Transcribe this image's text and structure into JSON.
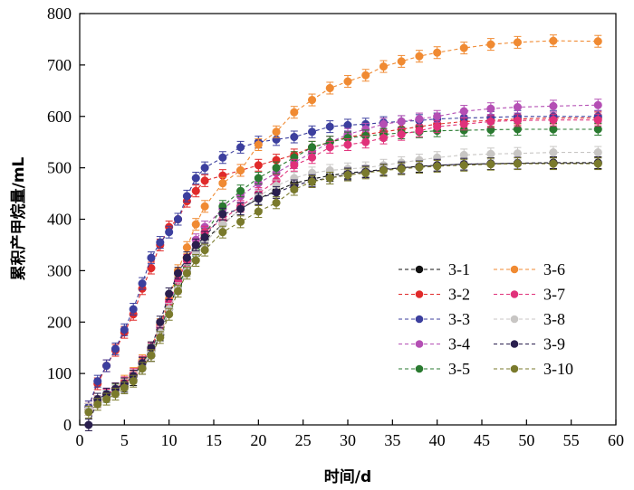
{
  "chart_data": {
    "type": "line",
    "title": "",
    "xlabel": "时间/d",
    "ylabel": "累积产甲烷量/mL",
    "xlim": [
      0,
      60
    ],
    "ylim": [
      0,
      800
    ],
    "xticks": [
      0,
      5,
      10,
      15,
      20,
      25,
      30,
      35,
      40,
      45,
      50,
      55,
      60
    ],
    "yticks": [
      0,
      100,
      200,
      300,
      400,
      500,
      600,
      700,
      800
    ],
    "grid": false,
    "legend_position": "bottom-right",
    "markers": "circle with error bars",
    "series": [
      {
        "name": "3-1",
        "color": "#111111",
        "x": [
          1,
          2,
          3,
          4,
          5,
          6,
          7,
          8,
          9,
          10,
          11,
          12,
          13,
          14,
          16,
          18,
          20,
          22,
          24,
          26,
          28,
          30,
          32,
          34,
          36,
          38,
          40,
          43,
          46,
          49,
          53,
          58
        ],
        "y": [
          30,
          45,
          55,
          65,
          75,
          88,
          110,
          135,
          175,
          225,
          275,
          300,
          335,
          360,
          390,
          420,
          440,
          455,
          470,
          478,
          485,
          490,
          493,
          497,
          500,
          503,
          505,
          507,
          508,
          509,
          510,
          510
        ]
      },
      {
        "name": "3-2",
        "color": "#e02a2a",
        "x": [
          1,
          2,
          3,
          4,
          5,
          6,
          7,
          8,
          9,
          10,
          11,
          12,
          13,
          14,
          16,
          18,
          20,
          22,
          24,
          26,
          28,
          30,
          32,
          34,
          36,
          38,
          40,
          43,
          46,
          49,
          53,
          58
        ],
        "y": [
          35,
          80,
          115,
          145,
          180,
          215,
          265,
          305,
          350,
          385,
          400,
          435,
          455,
          475,
          485,
          495,
          505,
          515,
          525,
          540,
          550,
          560,
          565,
          570,
          575,
          580,
          585,
          590,
          592,
          595,
          597,
          597
        ]
      },
      {
        "name": "3-3",
        "color": "#3c3f9e",
        "x": [
          1,
          2,
          3,
          4,
          5,
          6,
          7,
          8,
          9,
          10,
          11,
          12,
          13,
          14,
          16,
          18,
          20,
          22,
          24,
          26,
          28,
          30,
          32,
          34,
          36,
          38,
          40,
          43,
          46,
          49,
          53,
          58
        ],
        "y": [
          35,
          85,
          115,
          148,
          185,
          225,
          275,
          325,
          355,
          375,
          400,
          445,
          480,
          500,
          520,
          540,
          550,
          555,
          560,
          570,
          580,
          583,
          585,
          588,
          590,
          592,
          595,
          597,
          598,
          600,
          600,
          600
        ]
      },
      {
        "name": "3-4",
        "color": "#b44fb4",
        "x": [
          1,
          2,
          3,
          4,
          5,
          6,
          7,
          8,
          9,
          10,
          11,
          12,
          13,
          14,
          16,
          18,
          20,
          22,
          24,
          26,
          28,
          30,
          32,
          34,
          36,
          38,
          40,
          43,
          46,
          49,
          53,
          58
        ],
        "y": [
          30,
          45,
          60,
          70,
          80,
          95,
          120,
          145,
          185,
          235,
          280,
          320,
          360,
          385,
          420,
          445,
          470,
          490,
          510,
          530,
          550,
          565,
          575,
          585,
          590,
          595,
          600,
          610,
          615,
          618,
          620,
          622
        ]
      },
      {
        "name": "3-5",
        "color": "#2a7a30",
        "x": [
          1,
          2,
          3,
          4,
          5,
          6,
          7,
          8,
          9,
          10,
          11,
          12,
          13,
          14,
          16,
          18,
          20,
          22,
          24,
          26,
          28,
          30,
          32,
          34,
          36,
          38,
          40,
          43,
          46,
          49,
          53,
          58
        ],
        "y": [
          30,
          45,
          55,
          68,
          80,
          95,
          120,
          145,
          185,
          230,
          270,
          305,
          340,
          370,
          425,
          455,
          480,
          500,
          520,
          540,
          550,
          558,
          562,
          565,
          568,
          570,
          572,
          573,
          574,
          575,
          575,
          575
        ]
      },
      {
        "name": "3-6",
        "color": "#f08a32",
        "x": [
          1,
          2,
          3,
          4,
          5,
          6,
          7,
          8,
          9,
          10,
          11,
          12,
          13,
          14,
          16,
          18,
          20,
          22,
          24,
          26,
          28,
          30,
          32,
          34,
          36,
          38,
          40,
          43,
          46,
          49,
          53,
          58
        ],
        "y": [
          30,
          45,
          58,
          70,
          85,
          100,
          125,
          150,
          195,
          245,
          300,
          345,
          390,
          425,
          470,
          495,
          545,
          570,
          608,
          632,
          655,
          668,
          680,
          697,
          707,
          717,
          724,
          733,
          740,
          744,
          747,
          746
        ]
      },
      {
        "name": "3-7",
        "color": "#e0317a",
        "x": [
          1,
          2,
          3,
          4,
          5,
          6,
          7,
          8,
          9,
          10,
          11,
          12,
          13,
          14,
          16,
          18,
          20,
          22,
          24,
          26,
          28,
          30,
          32,
          34,
          36,
          38,
          40,
          43,
          46,
          49,
          53,
          58
        ],
        "y": [
          30,
          45,
          58,
          70,
          82,
          98,
          122,
          148,
          190,
          240,
          280,
          320,
          350,
          375,
          400,
          425,
          450,
          475,
          505,
          520,
          540,
          545,
          550,
          558,
          565,
          572,
          580,
          585,
          590,
          592,
          593,
          593
        ]
      },
      {
        "name": "3-8",
        "color": "#c8c6c4",
        "x": [
          1,
          2,
          3,
          4,
          5,
          6,
          7,
          8,
          9,
          10,
          11,
          12,
          13,
          14,
          16,
          18,
          20,
          22,
          24,
          26,
          28,
          30,
          32,
          34,
          36,
          38,
          40,
          43,
          46,
          49,
          53,
          58
        ],
        "y": [
          30,
          45,
          55,
          65,
          78,
          92,
          115,
          140,
          180,
          225,
          265,
          300,
          335,
          355,
          390,
          420,
          445,
          465,
          480,
          490,
          495,
          498,
          500,
          505,
          510,
          515,
          520,
          525,
          527,
          528,
          530,
          530
        ]
      },
      {
        "name": "3-9",
        "color": "#2a1f4e",
        "x": [
          1,
          2,
          3,
          4,
          5,
          6,
          7,
          8,
          9,
          10,
          11,
          12,
          13,
          14,
          16,
          18,
          20,
          22,
          24,
          26,
          28,
          30,
          32,
          34,
          36,
          38,
          40,
          43,
          46,
          49,
          53,
          58
        ],
        "y": [
          0,
          50,
          60,
          70,
          80,
          95,
          120,
          150,
          200,
          255,
          295,
          325,
          350,
          365,
          410,
          420,
          440,
          452,
          465,
          475,
          480,
          488,
          492,
          496,
          500,
          502,
          505,
          507,
          508,
          509,
          509,
          509
        ]
      },
      {
        "name": "3-10",
        "color": "#7a7a2c",
        "x": [
          1,
          2,
          3,
          4,
          5,
          6,
          7,
          8,
          9,
          10,
          11,
          12,
          13,
          14,
          16,
          18,
          20,
          22,
          24,
          26,
          28,
          30,
          32,
          34,
          36,
          38,
          40,
          43,
          46,
          49,
          53,
          58
        ],
        "y": [
          25,
          40,
          50,
          60,
          72,
          85,
          110,
          135,
          170,
          215,
          260,
          295,
          320,
          340,
          375,
          395,
          415,
          432,
          458,
          473,
          480,
          486,
          490,
          495,
          498,
          501,
          503,
          505,
          507,
          508,
          508,
          508
        ]
      }
    ]
  }
}
